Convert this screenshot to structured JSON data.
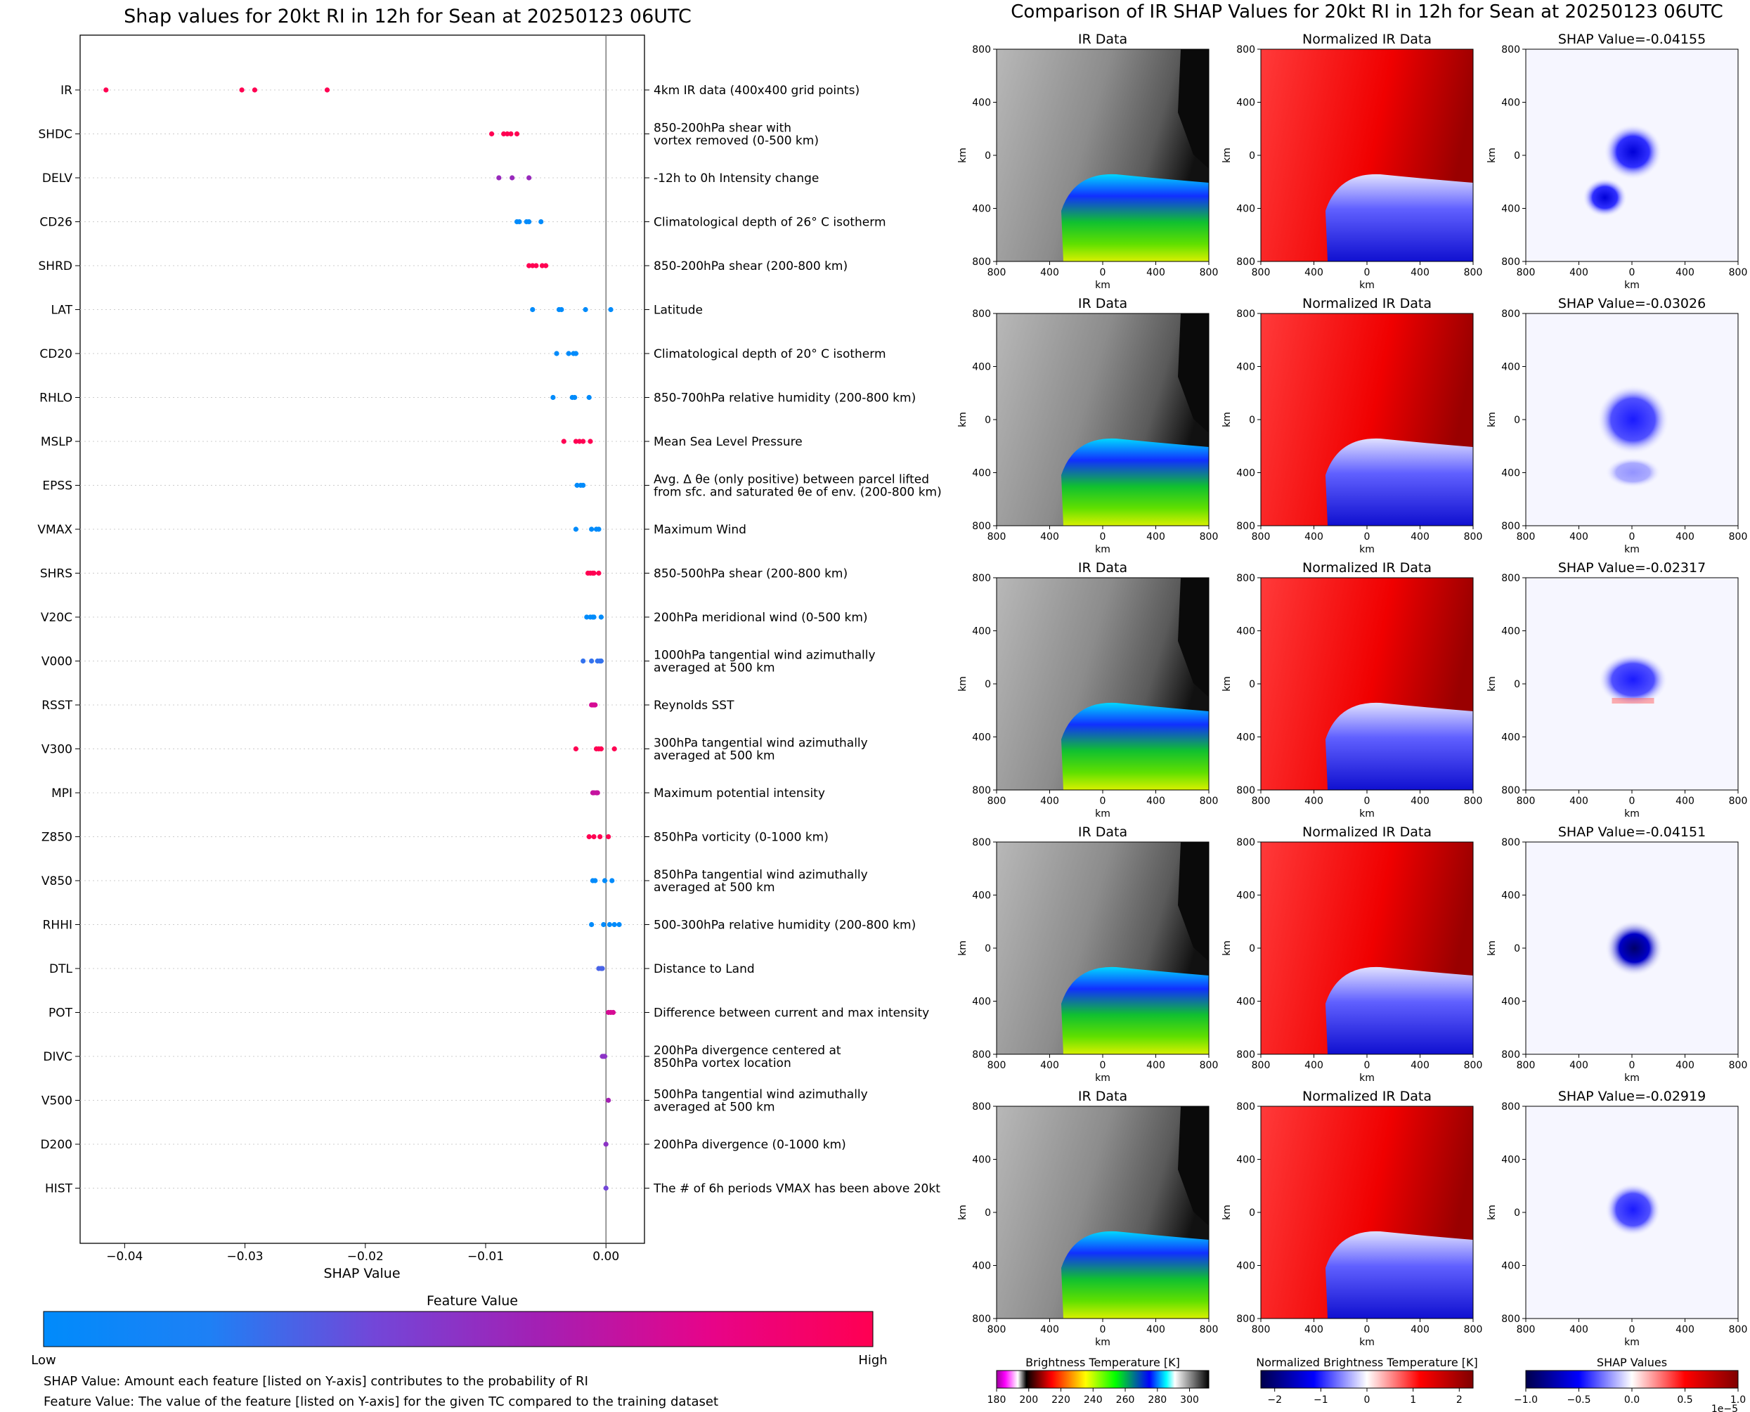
{
  "left_panel": {
    "title": "Shap values for 20kt RI in 12h for Sean at 20250123 06UTC",
    "colorbar_title": "Feature Value",
    "colorbar_low": "Low",
    "colorbar_high": "High",
    "note1": "SHAP Value: Amount each feature [listed on Y-axis] contributes to the probability of RI",
    "note2": "Feature Value: The value of the feature [listed on Y-axis] for the given TC compared to the training dataset"
  },
  "right_panel": {
    "title": "Comparison of IR SHAP Values for 20kt RI in 12h for Sean at 20250123 06UTC",
    "col_titles": [
      "IR Data",
      "Normalized IR Data"
    ],
    "shap_titles": [
      "SHAP Value=-0.04155",
      "SHAP Value=-0.03026",
      "SHAP Value=-0.02317",
      "SHAP Value=-0.04151",
      "SHAP Value=-0.02919"
    ],
    "x_ticks": [
      "800",
      "400",
      "0",
      "400",
      "800"
    ],
    "y_ticks": [
      "800",
      "400",
      "0",
      "400",
      "800"
    ],
    "axis_label": "km",
    "colorbars": [
      {
        "title": "Brightness Temperature [K]",
        "ticks": [
          "180",
          "200",
          "220",
          "240",
          "260",
          "280",
          "300"
        ]
      },
      {
        "title": "Normalized Brightness Temperature [K]",
        "ticks": [
          "−2",
          "−1",
          "0",
          "1",
          "2"
        ]
      },
      {
        "title": "SHAP Values",
        "ticks": [
          "−1.0",
          "−0.5",
          "0.0",
          "0.5",
          "1.0"
        ],
        "offset": "1e−5"
      }
    ]
  },
  "colors": {
    "low": "#008bfb",
    "mid": "#8f2dd0",
    "high": "#ff0052"
  },
  "chart_data": [
    {
      "type": "scatter",
      "title": "Shap values for 20kt RI in 12h for Sean at 20250123 06UTC",
      "xlabel": "SHAP Value",
      "xlim": [
        -0.0437,
        0.0032
      ],
      "x_ticks": [
        -0.04,
        -0.03,
        -0.02,
        -0.01,
        0.0
      ],
      "x_tick_labels": [
        "−0.04",
        "−0.03",
        "−0.02",
        "−0.01",
        "0.00"
      ],
      "features": [
        {
          "name": "IR",
          "desc": [
            "4km IR data (400x400 grid points)"
          ],
          "feature_value": 1.0,
          "values": [
            -0.04155,
            -0.03026,
            -0.02919,
            -0.02317
          ]
        },
        {
          "name": "SHDC",
          "desc": [
            "850-200hPa shear with",
            "vortex removed (0-500 km)"
          ],
          "feature_value": 1.0,
          "values": [
            -0.0095,
            -0.0085,
            -0.0082,
            -0.0079,
            -0.0074
          ]
        },
        {
          "name": "DELV",
          "desc": [
            "-12h to 0h Intensity change"
          ],
          "feature_value": 0.55,
          "values": [
            -0.0089,
            -0.0078,
            -0.0064
          ]
        },
        {
          "name": "CD26",
          "desc": [
            "Climatological depth of 26° C isotherm"
          ],
          "feature_value": 0.0,
          "values": [
            -0.0074,
            -0.0072,
            -0.0066,
            -0.0064,
            -0.0054
          ]
        },
        {
          "name": "SHRD",
          "desc": [
            "850-200hPa shear (200-800 km)"
          ],
          "feature_value": 1.0,
          "values": [
            -0.0064,
            -0.0061,
            -0.0058,
            -0.0053,
            -0.005
          ]
        },
        {
          "name": "LAT",
          "desc": [
            "Latitude"
          ],
          "feature_value": 0.0,
          "values": [
            -0.0061,
            -0.0039,
            -0.0037,
            -0.0017,
            0.0004
          ]
        },
        {
          "name": "CD20",
          "desc": [
            "Climatological depth of 20° C isotherm"
          ],
          "feature_value": 0.0,
          "values": [
            -0.0041,
            -0.0031,
            -0.0027,
            -0.0025
          ]
        },
        {
          "name": "RHLO",
          "desc": [
            "850-700hPa relative humidity (200-800 km)"
          ],
          "feature_value": 0.0,
          "values": [
            -0.0044,
            -0.0028,
            -0.0026,
            -0.0014
          ]
        },
        {
          "name": "MSLP",
          "desc": [
            "Mean Sea Level Pressure"
          ],
          "feature_value": 1.0,
          "values": [
            -0.0035,
            -0.0025,
            -0.0022,
            -0.0019,
            -0.0013
          ]
        },
        {
          "name": "EPSS",
          "desc": [
            "Avg. Δ θe (only positive) between parcel lifted",
            "from sfc. and saturated θe of env. (200-800 km)"
          ],
          "feature_value": 0.0,
          "values": [
            -0.0024,
            -0.0021,
            -0.0019
          ]
        },
        {
          "name": "VMAX",
          "desc": [
            "Maximum Wind"
          ],
          "feature_value": 0.0,
          "values": [
            -0.0025,
            -0.0012,
            -0.0008,
            -0.0006
          ]
        },
        {
          "name": "SHRS",
          "desc": [
            "850-500hPa shear (200-800 km)"
          ],
          "feature_value": 1.0,
          "values": [
            -0.0015,
            -0.0013,
            -0.0011,
            -0.001,
            -0.0006
          ]
        },
        {
          "name": "V20C",
          "desc": [
            "200hPa meridional wind (0-500 km)"
          ],
          "feature_value": 0.0,
          "values": [
            -0.0016,
            -0.0013,
            -0.0011,
            -0.001,
            -0.0004
          ]
        },
        {
          "name": "V000",
          "desc": [
            "1000hPa tangential wind azimuthally",
            "averaged at 500 km"
          ],
          "feature_value": 0.25,
          "values": [
            -0.0019,
            -0.0012,
            -0.0007,
            -0.0005,
            -0.0004
          ]
        },
        {
          "name": "RSST",
          "desc": [
            "Reynolds SST"
          ],
          "feature_value": 0.75,
          "values": [
            -0.0012,
            -0.0011,
            -0.001,
            -0.0009
          ]
        },
        {
          "name": "V300",
          "desc": [
            "300hPa tangential wind azimuthally",
            "averaged at 500 km"
          ],
          "feature_value": 1.0,
          "values": [
            -0.0025,
            -0.0008,
            -0.0006,
            -0.0004,
            0.0007
          ]
        },
        {
          "name": "MPI",
          "desc": [
            "Maximum potential intensity"
          ],
          "feature_value": 0.7,
          "values": [
            -0.0011,
            -0.001,
            -0.0008,
            -0.0007
          ]
        },
        {
          "name": "Z850",
          "desc": [
            "850hPa vorticity (0-1000 km)"
          ],
          "feature_value": 1.0,
          "values": [
            -0.0014,
            -0.001,
            -0.0005,
            0.0002
          ]
        },
        {
          "name": "V850",
          "desc": [
            "850hPa tangential wind azimuthally",
            "averaged at 500 km"
          ],
          "feature_value": 0.0,
          "values": [
            -0.0011,
            -0.0009,
            -0.0001,
            0.0005
          ]
        },
        {
          "name": "RHHI",
          "desc": [
            "500-300hPa relative humidity (200-800 km)"
          ],
          "feature_value": 0.0,
          "values": [
            -0.0012,
            -0.0002,
            0.0003,
            0.0007,
            0.0011
          ]
        },
        {
          "name": "DTL",
          "desc": [
            "Distance to Land"
          ],
          "feature_value": 0.3,
          "values": [
            -0.0006,
            -0.0004,
            -0.0003
          ]
        },
        {
          "name": "POT",
          "desc": [
            "Difference between current and max intensity"
          ],
          "feature_value": 0.75,
          "values": [
            0.0002,
            0.0004,
            0.0006
          ]
        },
        {
          "name": "DIVC",
          "desc": [
            "200hPa divergence centered at",
            "850hPa vortex location"
          ],
          "feature_value": 0.5,
          "values": [
            -0.0003,
            -0.0002,
            -0.0001
          ]
        },
        {
          "name": "V500",
          "desc": [
            "500hPa tangential wind azimuthally",
            "averaged at 500 km"
          ],
          "feature_value": 0.6,
          "values": [
            0.0002
          ]
        },
        {
          "name": "D200",
          "desc": [
            "200hPa divergence (0-1000 km)"
          ],
          "feature_value": 0.5,
          "values": [
            0.0
          ]
        },
        {
          "name": "HIST",
          "desc": [
            "The # of 6h periods VMAX has been above 20kt"
          ],
          "feature_value": 0.4,
          "values": [
            0.0
          ]
        }
      ]
    },
    {
      "type": "heatmap",
      "title": "Comparison of IR SHAP Values for 20kt RI in 12h for Sean at 20250123 06UTC",
      "rows": 5,
      "columns": [
        "IR Data",
        "Normalized IR Data",
        "SHAP"
      ],
      "shap_values": [
        -0.04155,
        -0.03026,
        -0.02317,
        -0.04151,
        -0.02919
      ],
      "xlim": [
        -800,
        800
      ],
      "ylim": [
        -800,
        800
      ],
      "xlabel": "km",
      "ylabel": "km"
    }
  ]
}
